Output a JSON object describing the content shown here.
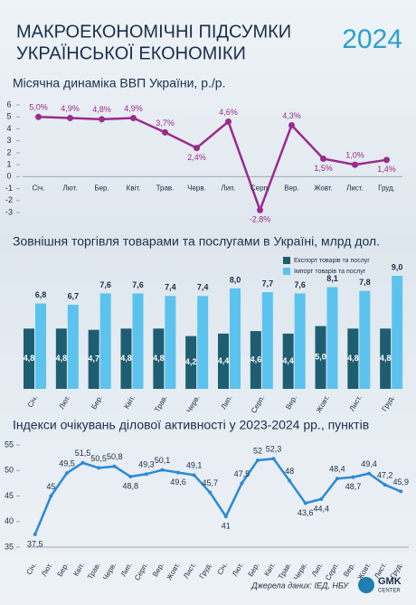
{
  "header": {
    "title": [
      "МАКРОЕКОНОМІЧНІ ПІДСУМКИ",
      "УКРАЇНСЬКОЇ ЕКОНОМІКИ"
    ],
    "year": "2024"
  },
  "chart_data": [
    {
      "type": "line",
      "title": "Місячна динаміка ВВП України, р./р.",
      "categories": [
        "Січ.",
        "Лют.",
        "Бер.",
        "Квіт.",
        "Трав.",
        "Черв.",
        "Лип.",
        "Серп.",
        "Вер.",
        "Жовт.",
        "Лист.",
        "Груд."
      ],
      "values": [
        5.0,
        4.9,
        4.8,
        4.9,
        3.7,
        2.4,
        4.6,
        -2.8,
        4.3,
        1.5,
        1.0,
        1.4
      ],
      "value_labels": [
        "5,0%",
        "4,9%",
        "4,8%",
        "4,9%",
        "3,7%",
        "2,4%",
        "4,6%",
        "-2,8%",
        "4,3%",
        "1,5%",
        "1,0%",
        "1,4%"
      ],
      "color": "#9c2b8e",
      "ylim": [
        -3,
        6
      ],
      "yticks": [
        -3,
        -2,
        -1,
        0,
        1,
        2,
        3,
        4,
        5,
        6
      ]
    },
    {
      "type": "bar",
      "title": "Зовнішня торгівля товарами та послугами в Україні, млрд дол.",
      "categories": [
        "Січ.",
        "Лют.",
        "Бер.",
        "Квіт.",
        "Трав.",
        "Черв.",
        "Лип.",
        "Серп.",
        "Вер.",
        "Жовт.",
        "Лист.",
        "Груд."
      ],
      "series": [
        {
          "name": "Експорт товарів та послуг",
          "color": "#1f5d70",
          "values": [
            4.8,
            4.8,
            4.7,
            4.8,
            4.8,
            4.2,
            4.4,
            4.6,
            4.4,
            5.0,
            4.8,
            4.8
          ],
          "value_labels": [
            "4,8",
            "4,8",
            "4,7",
            "4,8",
            "4,8",
            "4,2",
            "4,4",
            "4,6",
            "4,4",
            "5,0",
            "4,8",
            "4,8"
          ]
        },
        {
          "name": "Імпорт товарів та послуг",
          "color": "#5cc3ee",
          "values": [
            6.8,
            6.7,
            7.6,
            7.6,
            7.4,
            7.4,
            8.0,
            7.7,
            7.6,
            8.1,
            7.8,
            9.0
          ],
          "value_labels": [
            "6,8",
            "6,7",
            "7,6",
            "7,6",
            "7,4",
            "7,4",
            "8,0",
            "7,7",
            "7,6",
            "8,1",
            "7,8",
            "9,0"
          ]
        }
      ]
    },
    {
      "type": "line",
      "title": "Індекси очікувань ділової активності у 2023-2024 рр., пунктів",
      "categories": [
        "Січ.",
        "Лют.",
        "Бер.",
        "Квіт.",
        "Трав.",
        "Черв.",
        "Лип.",
        "Серп.",
        "Вер.",
        "Жовт.",
        "Лист.",
        "Груд.",
        "Січ.",
        "Лют.",
        "Бер.",
        "Квіт.",
        "Трав.",
        "Черв.",
        "Лип.",
        "Серп.",
        "Вер.",
        "Жовт.",
        "Лист.",
        "Груд."
      ],
      "values": [
        37.5,
        45,
        49.5,
        51.5,
        50.5,
        50.8,
        48.8,
        49.3,
        50.1,
        49.6,
        49.1,
        45.7,
        41,
        47.5,
        52,
        52.3,
        48,
        43.6,
        44.4,
        48.4,
        48.7,
        49.4,
        47.2,
        45.9
      ],
      "value_labels": [
        "37,5",
        "45",
        "49,5",
        "51,5",
        "50,5",
        "50,8",
        "48,8",
        "49,3",
        "50,1",
        "49,6",
        "49,1",
        "45,7",
        "41",
        "47,5",
        "52",
        "52,3",
        "48",
        "43,6",
        "44,4",
        "48,4",
        "48,7",
        "49,4",
        "47,2",
        "45,9"
      ],
      "color": "#2a8ad6",
      "ylim": [
        35,
        55
      ],
      "yticks": [
        35,
        40,
        45,
        50,
        55
      ]
    }
  ],
  "footer": {
    "source": "Джерела даних: ІЕД, НБУ",
    "logo": "GMK",
    "logo_sub": "CENTER"
  }
}
